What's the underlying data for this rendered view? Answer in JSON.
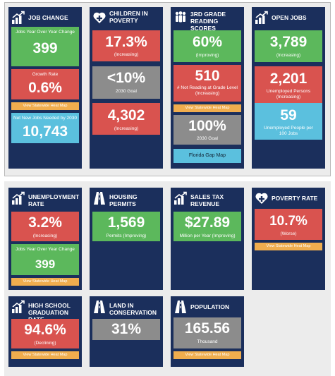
{
  "top_row": {
    "job_change": {
      "title": "JOB CHANGE",
      "tile1": {
        "caption": "Jobs Year Over Year Change",
        "value": "399"
      },
      "tile2": {
        "caption": "Growth Rate",
        "value": "0.6%"
      },
      "button": "View Statewide Heat Map",
      "tile3": {
        "caption": "Net New Jobs Needed by 2030",
        "value": "10,743"
      }
    },
    "children_poverty": {
      "title": "CHILDREN IN POVERTY",
      "tile1": {
        "value": "17.3%",
        "note": "(Increasing)"
      },
      "tile2": {
        "value": "<10%",
        "note": "2030 Goal"
      },
      "tile3": {
        "value": "4,302",
        "note": "(Increasing)"
      }
    },
    "reading": {
      "title": "3RD GRADE READING SCORES",
      "tile1": {
        "value": "60%",
        "note": "(Improving)"
      },
      "tile2": {
        "value": "510",
        "note": "# Not Reading at Grade Level (Increasing)"
      },
      "button": "View Statewide Heat Map",
      "tile3": {
        "value": "100%",
        "note": "2030 Goal"
      },
      "gap_button": "Florida Gap Map"
    },
    "open_jobs": {
      "title": "OPEN JOBS",
      "tile1": {
        "value": "3,789",
        "note": "(Increasing)"
      },
      "tile2": {
        "value": "2,201",
        "note": "Unemployed Persons (Increasing)"
      },
      "tile3": {
        "value": "59",
        "note": "Unemployed People per 100 Jobs"
      }
    }
  },
  "middle_row": {
    "unemployment": {
      "title": "UNEMPLOYMENT RATE",
      "tile1": {
        "value": "3.2%",
        "note": "(Increasing)"
      },
      "tile2": {
        "caption": "Jobs Year Over Year Change",
        "value": "399"
      },
      "button": "View Statewide Heat Map"
    },
    "housing": {
      "title": "HOUSING PERMITS",
      "tile1": {
        "value": "1,569",
        "note": "Permits (Improving)"
      }
    },
    "sales_tax": {
      "title": "SALES TAX REVENUE",
      "tile1": {
        "value": "$27.89",
        "note": "Million per Year (Improving)"
      }
    },
    "poverty": {
      "title": "POVERTY RATE",
      "tile1": {
        "value": "10.7%",
        "note": "(Worse)"
      },
      "button": "View Statewide Heat Map"
    }
  },
  "bottom_row": {
    "graduation": {
      "title": "HIGH SCHOOL GRADUATION RATE",
      "tile1": {
        "value": "94.6%",
        "note": "(Declining)"
      },
      "button": "View Statewide Heat Map"
    },
    "conservation": {
      "title": "LAND IN CONSERVATION",
      "tile1": {
        "value": "31%"
      }
    },
    "population": {
      "title": "POPULATION",
      "tile1": {
        "value": "165.56",
        "note": "Thousand"
      },
      "button": "View Statewide Heat Map"
    }
  },
  "colors": {
    "card": "#1b2f5c",
    "green": "#5cb85c",
    "red": "#d9534f",
    "gray": "#8c8c8c",
    "cyan": "#5bc0de",
    "orange": "#f0ad4e"
  },
  "icons": {
    "growth": "bar-chart-growth-icon",
    "heart": "heart-plus-icon",
    "people": "people-group-icon",
    "road": "road-icon"
  }
}
